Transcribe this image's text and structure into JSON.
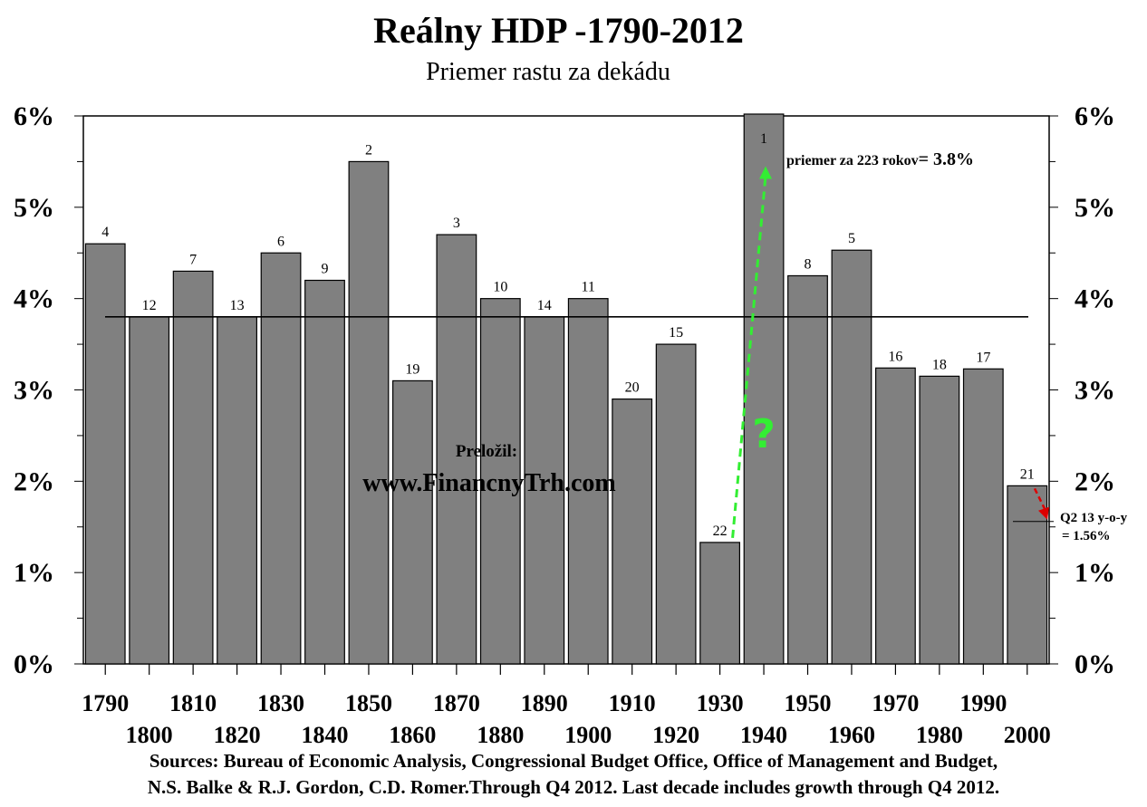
{
  "title": {
    "prefix": "Reálny HDP -",
    "years": "1790-2012"
  },
  "subtitle": "Priemer rastu za dekádu",
  "sources": {
    "line1": "Sources: Bureau of Economic Analysis, Congressional Budget Office, Office of Management and Budget,",
    "line2": "N.S. Balke & R.J. Gordon, C.D. Romer.Through  Q4 2012. Last decade includes growth through Q4 2012."
  },
  "watermark": {
    "label": "Preložil:",
    "url": "www.FinancnyTrh.com"
  },
  "colors": {
    "bar": "#808080",
    "bar_border": "#000000",
    "average_line": "#000000",
    "green_arrow": "#33ee33",
    "red_arrow": "#dd0000"
  },
  "chart_data": {
    "type": "bar",
    "categories": [
      "1790",
      "1800",
      "1810",
      "1820",
      "1830",
      "1840",
      "1850",
      "1860",
      "1870",
      "1880",
      "1890",
      "1900",
      "1910",
      "1920",
      "1930",
      "1940",
      "1950",
      "1960",
      "1970",
      "1980",
      "1990",
      "2000"
    ],
    "values": [
      4.6,
      3.8,
      4.3,
      3.8,
      4.5,
      4.2,
      5.5,
      3.1,
      4.7,
      4.0,
      3.8,
      4.0,
      2.9,
      3.5,
      1.33,
      6.02,
      4.25,
      4.53,
      3.24,
      3.15,
      3.23,
      1.95
    ],
    "rank_labels": [
      "4",
      "12",
      "7",
      "13",
      "6",
      "9",
      "2",
      "19",
      "3",
      "10",
      "14",
      "11",
      "20",
      "15",
      "22",
      "1",
      "8",
      "5",
      "16",
      "18",
      "17",
      "21"
    ],
    "y_ticks": [
      "0%",
      "1%",
      "2%",
      "3%",
      "4%",
      "5%",
      "6%"
    ],
    "ylim": [
      0,
      6
    ],
    "average": 3.8,
    "average_label": "priemer za 223 rokov",
    "average_value_label": "= 3.8%",
    "question_mark": "?",
    "q2_value": 1.56,
    "q2_label_line1": "Q2 13 y-o-y",
    "q2_label_line2": "= 1.56%",
    "grid": false,
    "legend": "none"
  }
}
